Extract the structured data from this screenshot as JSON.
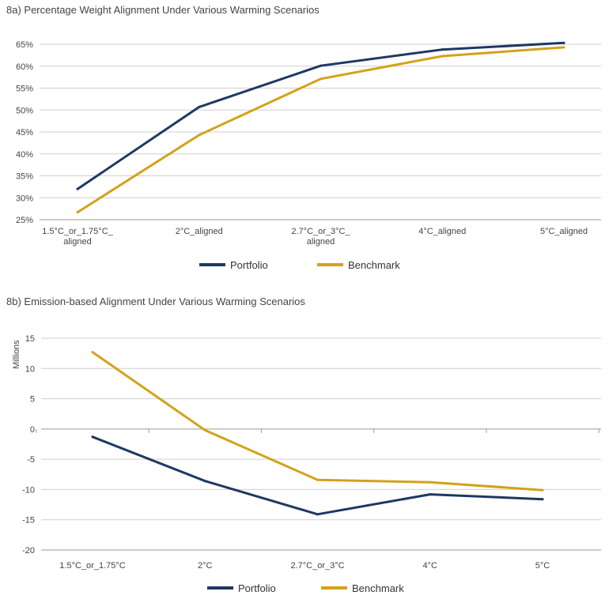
{
  "chart_data": [
    {
      "type": "line",
      "title": "8a) Percentage Weight Alignment Under Various Warming Scenarios",
      "categories": [
        [
          "1.5°C_or_1.75°C_",
          "aligned"
        ],
        [
          "2°C_aligned"
        ],
        [
          "2.7°C_or_3°C_",
          "aligned"
        ],
        [
          "4°C_aligned"
        ],
        [
          "5°C_aligned"
        ]
      ],
      "ylim": [
        25,
        65
      ],
      "yticks": [
        25,
        30,
        35,
        40,
        45,
        50,
        55,
        60,
        65
      ],
      "ytick_suffix": "%",
      "ylabel": "",
      "grid": true,
      "legend_position": "bottom",
      "series": [
        {
          "name": "Portfolio",
          "color": "#1f3864",
          "values": [
            32.0,
            50.7,
            60.1,
            63.8,
            65.3
          ]
        },
        {
          "name": "Benchmark",
          "color": "#d4a21a",
          "values": [
            26.7,
            44.3,
            57.1,
            62.3,
            64.3
          ]
        }
      ]
    },
    {
      "type": "line",
      "title": "8b) Emission-based Alignment Under Various Warming Scenarios",
      "categories": [
        [
          "1.5°C_or_1.75°C"
        ],
        [
          "2°C"
        ],
        [
          "2.7°C_or_3°C"
        ],
        [
          "4°C"
        ],
        [
          "5°C"
        ]
      ],
      "ylim": [
        -20,
        15
      ],
      "yticks": [
        -20,
        -15,
        -10,
        -5,
        0,
        5,
        10,
        15
      ],
      "ytick_suffix": "",
      "ylabel": "Millions",
      "grid": true,
      "legend_position": "bottom",
      "series": [
        {
          "name": "Portfolio",
          "color": "#1f3864",
          "values": [
            -1.3,
            -8.6,
            -14.1,
            -10.8,
            -11.6
          ]
        },
        {
          "name": "Benchmark",
          "color": "#d4a21a",
          "values": [
            12.7,
            -0.2,
            -8.4,
            -8.8,
            -10.1
          ]
        }
      ]
    }
  ]
}
